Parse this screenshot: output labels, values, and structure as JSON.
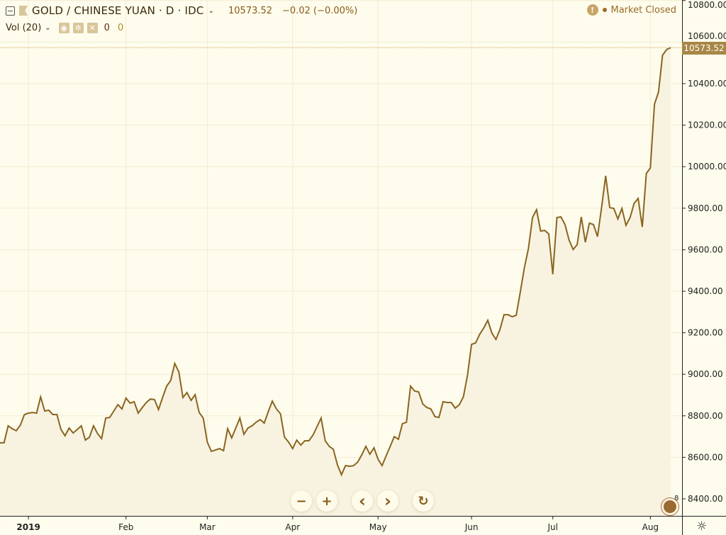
{
  "header": {
    "symbol_title": "GOLD / CHINESE YUAN · D · IDC",
    "last_price": "10573.52",
    "change": "−0.02 (−0.00%)",
    "market_status": "Market Closed",
    "warning_icon": "exclamation-icon"
  },
  "volume": {
    "label": "Vol (20)",
    "value1": "0",
    "value2": "0"
  },
  "price_label": "10573.52",
  "nav": {
    "zoom_out": "−",
    "zoom_in": "+",
    "scroll_left": "‹",
    "scroll_right": "›",
    "reset": "↻"
  },
  "logo_badge": "8",
  "colors": {
    "background": "#fefcec",
    "line": "#8b6420",
    "area_fill": "#f8f3e1",
    "grid": "#f1ebd2",
    "price_label_bg": "#a88646"
  },
  "chart_data": {
    "type": "area",
    "title": "GOLD / CHINESE YUAN · D · IDC",
    "ylim": [
      8400,
      10800
    ],
    "grid": true,
    "y_ticks": [
      "8400.00",
      "8600.00",
      "8800.00",
      "9000.00",
      "9200.00",
      "9400.00",
      "9600.00",
      "9800.00",
      "10000.00",
      "10200.00",
      "10400.00",
      "10600.00",
      "10800.00"
    ],
    "x_ticks": [
      {
        "label": "2019",
        "at_index": 7
      },
      {
        "label": "Feb",
        "at_index": 31
      },
      {
        "label": "Mar",
        "at_index": 51
      },
      {
        "label": "Apr",
        "at_index": 72
      },
      {
        "label": "May",
        "at_index": 93
      },
      {
        "label": "Jun",
        "at_index": 116
      },
      {
        "label": "Jul",
        "at_index": 136
      },
      {
        "label": "Aug",
        "at_index": 160
      }
    ],
    "values": [
      8670,
      8670,
      8752,
      8738,
      8728,
      8755,
      8806,
      8813,
      8816,
      8813,
      8891,
      8823,
      8827,
      8806,
      8806,
      8734,
      8704,
      8741,
      8717,
      8734,
      8752,
      8683,
      8697,
      8752,
      8714,
      8690,
      8789,
      8792,
      8823,
      8854,
      8833,
      8885,
      8861,
      8868,
      8813,
      8840,
      8864,
      8881,
      8878,
      8830,
      8888,
      8943,
      8970,
      9052,
      9011,
      8888,
      8912,
      8874,
      8902,
      8816,
      8789,
      8673,
      8629,
      8635,
      8642,
      8632,
      8738,
      8694,
      8741,
      8789,
      8711,
      8741,
      8752,
      8769,
      8782,
      8765,
      8820,
      8871,
      8833,
      8810,
      8697,
      8673,
      8642,
      8683,
      8659,
      8680,
      8680,
      8707,
      8748,
      8789,
      8680,
      8653,
      8639,
      8564,
      8516,
      8560,
      8557,
      8560,
      8577,
      8612,
      8653,
      8615,
      8646,
      8591,
      8560,
      8608,
      8653,
      8700,
      8687,
      8762,
      8769,
      8943,
      8919,
      8915,
      8857,
      8840,
      8833,
      8796,
      8792,
      8868,
      8864,
      8864,
      8837,
      8854,
      8891,
      8994,
      9144,
      9151,
      9192,
      9223,
      9260,
      9199,
      9168,
      9216,
      9287,
      9287,
      9277,
      9284,
      9397,
      9513,
      9605,
      9755,
      9793,
      9690,
      9693,
      9676,
      9482,
      9755,
      9758,
      9721,
      9646,
      9601,
      9625,
      9758,
      9636,
      9728,
      9721,
      9663,
      9803,
      9956,
      9803,
      9799,
      9748,
      9799,
      9717,
      9755,
      9823,
      9847,
      9710,
      9967,
      9994,
      10301,
      10359,
      10537,
      10564,
      10573.52
    ],
    "last_value": 10573.52
  }
}
